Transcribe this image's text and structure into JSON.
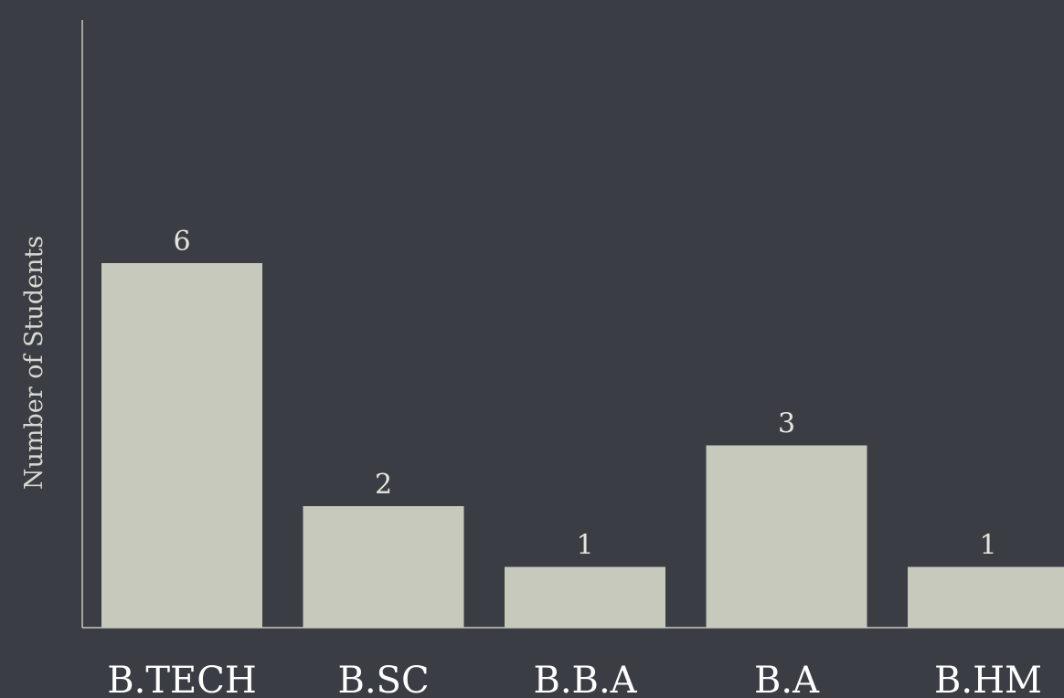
{
  "chart_data": {
    "type": "bar",
    "title": "",
    "xlabel": "",
    "ylabel": "Number of Students",
    "categories": [
      "B.TECH",
      "B.SC",
      "B.B.A",
      "B.A",
      "B.HM"
    ],
    "values": [
      6,
      2,
      1,
      3,
      1
    ],
    "ylim": [
      0,
      10
    ],
    "grid": false,
    "colors": {
      "background": "#3a3d43",
      "bar": "#c7c9bc",
      "axis": "#c7c9bc",
      "text": "#ffffff"
    }
  }
}
